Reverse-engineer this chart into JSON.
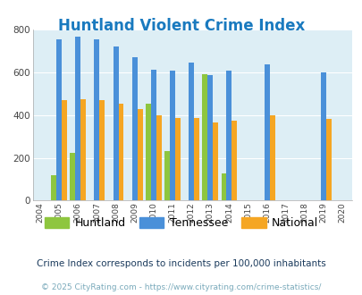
{
  "title": "Huntland Violent Crime Index",
  "years": [
    2004,
    2005,
    2006,
    2007,
    2008,
    2009,
    2010,
    2011,
    2012,
    2013,
    2014,
    2015,
    2016,
    2017,
    2018,
    2019,
    2020
  ],
  "huntland": [
    null,
    120,
    225,
    null,
    null,
    null,
    455,
    230,
    null,
    590,
    125,
    null,
    null,
    null,
    null,
    null,
    null
  ],
  "tennessee": [
    null,
    755,
    765,
    755,
    720,
    670,
    610,
    607,
    645,
    585,
    607,
    null,
    635,
    null,
    null,
    598,
    null
  ],
  "national": [
    null,
    470,
    475,
    470,
    455,
    428,
    400,
    387,
    387,
    365,
    375,
    null,
    398,
    null,
    null,
    380,
    null
  ],
  "colors": {
    "huntland": "#8ec63f",
    "tennessee": "#4a90d9",
    "national": "#f5a623"
  },
  "background_color": "#ddeef5",
  "ylim": [
    0,
    800
  ],
  "yticks": [
    0,
    200,
    400,
    600,
    800
  ],
  "subtitle": "Crime Index corresponds to incidents per 100,000 inhabitants",
  "footer": "© 2025 CityRating.com - https://www.cityrating.com/crime-statistics/",
  "bar_width": 0.28
}
